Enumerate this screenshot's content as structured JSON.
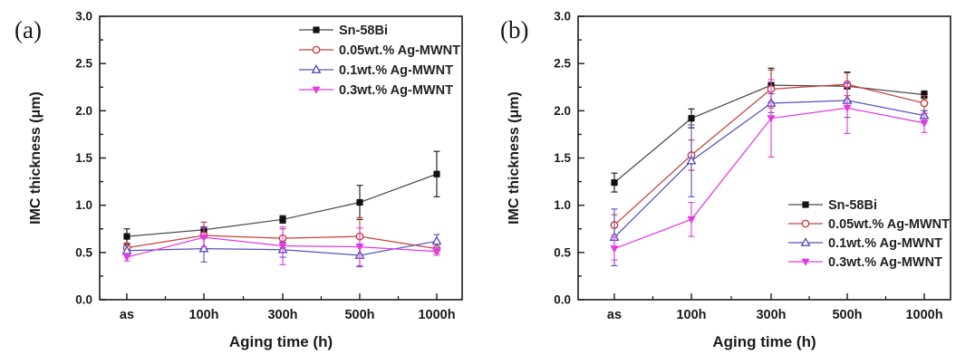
{
  "figure": {
    "background": "#ffffff",
    "text_color": "#1a1a1a"
  },
  "chart_data": [
    {
      "type": "line",
      "panel_label": "(a)",
      "xlabel": "Aging time (h)",
      "ylabel": "IMC thickness (μm)",
      "ylim": [
        0.0,
        3.0
      ],
      "ytick_step_major": 0.5,
      "ytick_step_minor": 0.25,
      "ytick_labels": [
        "0.0",
        "0.5",
        "1.0",
        "1.5",
        "2.0",
        "2.5",
        "3.0"
      ],
      "categories": [
        "as",
        "100h",
        "300h",
        "500h",
        "1000h"
      ],
      "grid": false,
      "legend_position": "top-right-inside",
      "series": [
        {
          "name": "Sn-58Bi",
          "color": "#111111",
          "line_color": "#4a4a4a",
          "marker": "square-filled",
          "values": [
            0.67,
            0.74,
            0.85,
            1.03,
            1.33
          ],
          "errors": [
            0.08,
            0.08,
            0.04,
            0.18,
            0.24
          ]
        },
        {
          "name": "0.05wt.% Ag-MWNT",
          "color": "#c8423c",
          "line_color": "#c8423c",
          "marker": "circle-open",
          "values": [
            0.55,
            0.68,
            0.65,
            0.67,
            0.54
          ],
          "errors": [
            0.05,
            0.14,
            0.1,
            0.2,
            0.05
          ]
        },
        {
          "name": "0.1wt.% Ag-MWNT",
          "color": "#5452bc",
          "line_color": "#5452bc",
          "marker": "triangle-up-open",
          "values": [
            0.52,
            0.54,
            0.53,
            0.47,
            0.62
          ],
          "errors": [
            0.05,
            0.14,
            0.08,
            0.12,
            0.07
          ]
        },
        {
          "name": "0.3wt.% Ag-MWNT",
          "color": "#e23ae2",
          "line_color": "#e23ae2",
          "marker": "triangle-down-filled",
          "values": [
            0.45,
            0.66,
            0.57,
            0.56,
            0.51
          ],
          "errors": [
            0.04,
            0.1,
            0.2,
            0.2,
            0.04
          ]
        }
      ]
    },
    {
      "type": "line",
      "panel_label": "(b)",
      "xlabel": "Aging time (h)",
      "ylabel": "IMC thickness (μm)",
      "ylim": [
        0.0,
        3.0
      ],
      "ytick_step_major": 0.5,
      "ytick_step_minor": 0.25,
      "ytick_labels": [
        "0.0",
        "0.5",
        "1.0",
        "1.5",
        "2.0",
        "2.5",
        "3.0"
      ],
      "categories": [
        "as",
        "100h",
        "300h",
        "500h",
        "1000h"
      ],
      "grid": false,
      "legend_position": "middle-right-inside",
      "series": [
        {
          "name": "Sn-58Bi",
          "color": "#111111",
          "line_color": "#4a4a4a",
          "marker": "square-filled",
          "values": [
            1.24,
            1.92,
            2.27,
            2.26,
            2.17
          ],
          "errors": [
            0.1,
            0.1,
            0.18,
            0.15,
            0.04
          ]
        },
        {
          "name": "0.05wt.% Ag-MWNT",
          "color": "#c8423c",
          "line_color": "#c8423c",
          "marker": "circle-open",
          "values": [
            0.79,
            1.53,
            2.23,
            2.28,
            2.08
          ],
          "errors": [
            0.11,
            0.16,
            0.2,
            0.12,
            0.08
          ]
        },
        {
          "name": "0.1wt.% Ag-MWNT",
          "color": "#5452bc",
          "line_color": "#5452bc",
          "marker": "triangle-up-open",
          "values": [
            0.66,
            1.47,
            2.08,
            2.11,
            1.95
          ],
          "errors": [
            0.3,
            0.38,
            0.1,
            0.18,
            0.05
          ]
        },
        {
          "name": "0.3wt.% Ag-MWNT",
          "color": "#e23ae2",
          "line_color": "#e23ae2",
          "marker": "triangle-down-filled",
          "values": [
            0.54,
            0.85,
            1.92,
            2.03,
            1.87
          ],
          "errors": [
            0.12,
            0.18,
            0.41,
            0.27,
            0.1
          ]
        }
      ]
    }
  ]
}
